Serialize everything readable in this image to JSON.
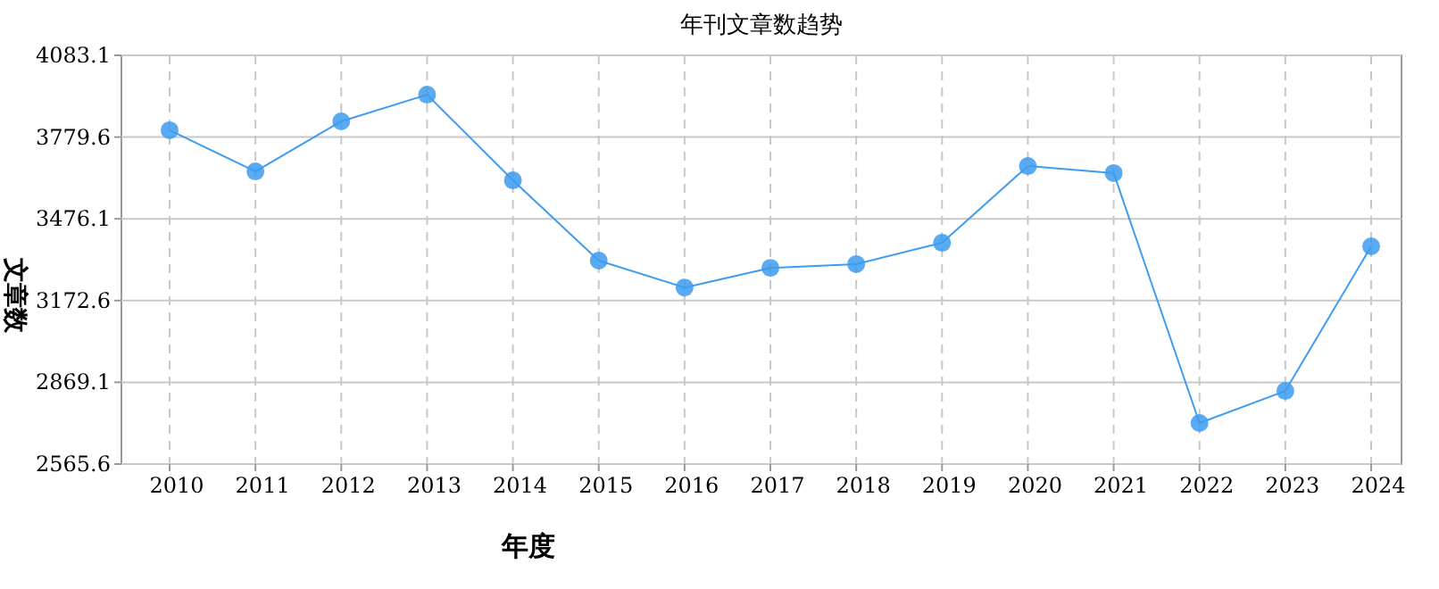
{
  "chart_data": {
    "type": "line",
    "title": "年刊文章数趋势",
    "xlabel": "年度",
    "ylabel": "文章数",
    "categories": [
      "2010",
      "2011",
      "2012",
      "2013",
      "2014",
      "2015",
      "2016",
      "2017",
      "2018",
      "2019",
      "2020",
      "2021",
      "2022",
      "2023",
      "2024"
    ],
    "series": [
      {
        "color": "#3d9bf0",
        "values": [
          3805,
          3652,
          3838,
          3937,
          3619,
          3321,
          3221,
          3294,
          3308,
          3387,
          3672,
          3646,
          2718,
          2837,
          3374
        ]
      }
    ],
    "ylim": [
      2565.6,
      4083.1
    ],
    "yticks": [
      2565.6,
      2869.1,
      3172.6,
      3476.1,
      3779.6,
      4083.1
    ],
    "grid": true,
    "marker": "circle"
  }
}
